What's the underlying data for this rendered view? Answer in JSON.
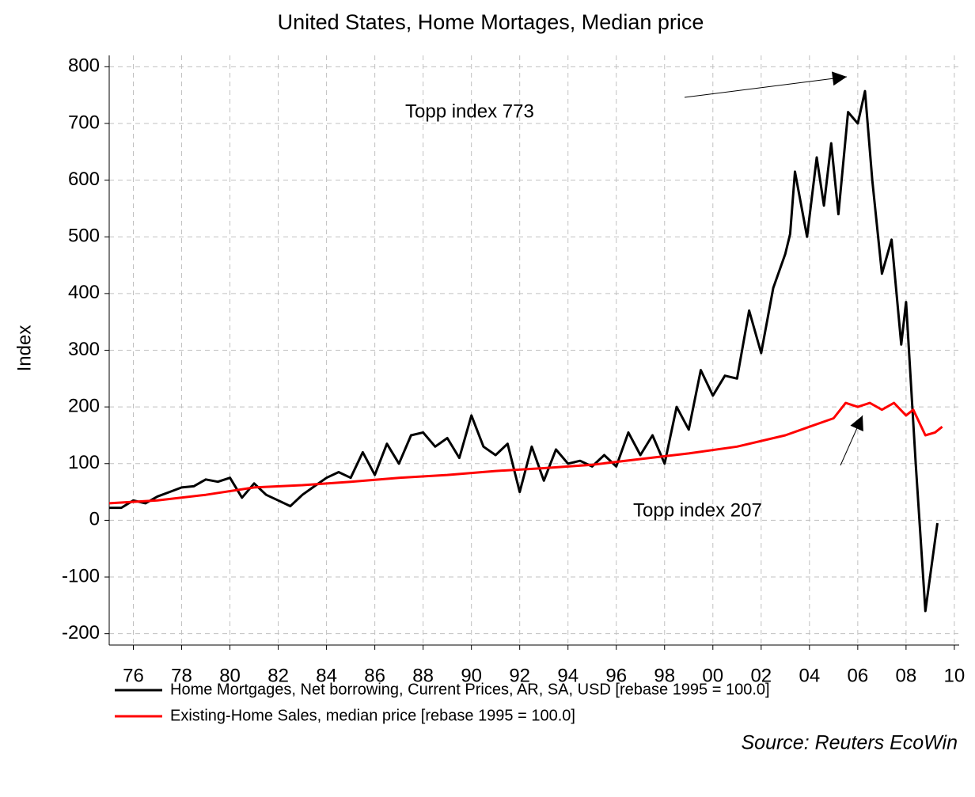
{
  "chart_data": {
    "type": "line",
    "title": "United States, Home Mortages, Median price",
    "y_label": "Index",
    "source": "Source: Reuters EcoWin",
    "annotations": [
      "Topp index 773",
      "Topp index 207"
    ],
    "xlim": [
      1975,
      2010.2
    ],
    "xticks": [
      {
        "value": 1976,
        "label": "76"
      },
      {
        "value": 1978,
        "label": "78"
      },
      {
        "value": 1980,
        "label": "80"
      },
      {
        "value": 1982,
        "label": "82"
      },
      {
        "value": 1984,
        "label": "84"
      },
      {
        "value": 1986,
        "label": "86"
      },
      {
        "value": 1988,
        "label": "88"
      },
      {
        "value": 1990,
        "label": "90"
      },
      {
        "value": 1992,
        "label": "92"
      },
      {
        "value": 1994,
        "label": "94"
      },
      {
        "value": 1996,
        "label": "96"
      },
      {
        "value": 1998,
        "label": "98"
      },
      {
        "value": 2000,
        "label": "00"
      },
      {
        "value": 2002,
        "label": "02"
      },
      {
        "value": 2004,
        "label": "04"
      },
      {
        "value": 2006,
        "label": "06"
      },
      {
        "value": 2008,
        "label": "08"
      },
      {
        "value": 2010,
        "label": "10"
      }
    ],
    "ylim": [
      -220,
      820
    ],
    "yticks": [
      -200,
      -100,
      0,
      100,
      200,
      300,
      400,
      500,
      600,
      700,
      800
    ],
    "grid": true,
    "series": [
      {
        "name": "Home Mortgages, Net borrowing, Current Prices, AR, SA, USD [rebase 1995 = 100.0]",
        "color": "#000000",
        "x": [
          1975,
          1975.5,
          1976,
          1976.5,
          1977,
          1977.5,
          1978,
          1978.5,
          1979,
          1979.5,
          1980,
          1980.5,
          1981,
          1981.5,
          1982,
          1982.5,
          1983,
          1983.5,
          1984,
          1984.5,
          1985,
          1985.5,
          1986,
          1986.5,
          1987,
          1987.5,
          1988,
          1988.5,
          1989,
          1989.5,
          1990,
          1990.5,
          1991,
          1991.5,
          1992,
          1992.5,
          1993,
          1993.5,
          1994,
          1994.5,
          1995,
          1995.5,
          1996,
          1996.5,
          1997,
          1997.5,
          1998,
          1998.5,
          1999,
          1999.5,
          2000,
          2000.5,
          2001,
          2001.5,
          2002,
          2002.5,
          2003,
          2003.2,
          2003.4,
          2003.9,
          2004.3,
          2004.6,
          2004.9,
          2005.2,
          2005.6,
          2006,
          2006.3,
          2006.6,
          2007,
          2007.4,
          2007.8,
          2008,
          2008.4,
          2008.8,
          2009.3
        ],
        "values": [
          22,
          22,
          35,
          30,
          42,
          50,
          58,
          60,
          72,
          68,
          75,
          40,
          65,
          45,
          35,
          25,
          45,
          60,
          75,
          85,
          75,
          120,
          80,
          135,
          100,
          150,
          155,
          130,
          145,
          110,
          185,
          130,
          115,
          135,
          50,
          130,
          70,
          125,
          100,
          105,
          95,
          115,
          95,
          155,
          115,
          150,
          100,
          200,
          160,
          265,
          220,
          255,
          250,
          370,
          295,
          410,
          470,
          505,
          615,
          500,
          640,
          555,
          665,
          540,
          720,
          700,
          757,
          600,
          435,
          495,
          310,
          385,
          100,
          -160,
          -5
        ]
      },
      {
        "name": "Existing-Home Sales, median price [rebase 1995 = 100.0]",
        "color": "#ff0000",
        "x": [
          1975,
          1977,
          1979,
          1981,
          1983,
          1985,
          1987,
          1989,
          1991,
          1993,
          1995,
          1997,
          1999,
          2001,
          2003,
          2004,
          2005,
          2005.5,
          2006,
          2006.5,
          2007,
          2007.5,
          2008,
          2008.3,
          2008.8,
          2009.2,
          2009.5
        ],
        "values": [
          30,
          35,
          45,
          58,
          62,
          68,
          75,
          80,
          87,
          92,
          98,
          108,
          118,
          130,
          150,
          165,
          180,
          207,
          200,
          207,
          195,
          207,
          185,
          195,
          150,
          155,
          165
        ]
      }
    ]
  }
}
